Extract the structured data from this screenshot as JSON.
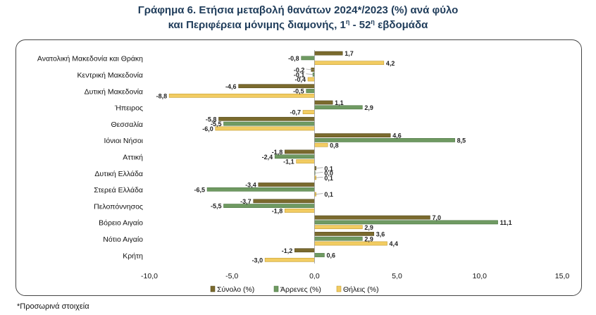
{
  "header": {
    "title_line1": "Γράφημα 6. Ετήσια μεταβολή θανάτων 2024*/2023 (%) ανά φύλο",
    "title_line2": "και Περιφέρεια μόνιμης διαμονής, 1η - 52η εβδομάδα"
  },
  "footnote": "*Προσωρινά στοιχεία",
  "chart_data": {
    "type": "bar",
    "orientation": "horizontal",
    "title": "Γράφημα 6. Ετήσια μεταβολή θανάτων 2024*/2023 (%) ανά φύλο και Περιφέρεια μόνιμης διαμονής, 1η - 52η εβδομάδα",
    "categories": [
      "Ανατολική Μακεδονία και Θράκη",
      "Κεντρική Μακεδονία",
      "Δυτική Μακεδονία",
      "Ήπειρος",
      "Θεσσαλία",
      "Ιόνιοι Νήσοι",
      "Αττική",
      "Δυτική Ελλάδα",
      "Στερεά Ελλάδα",
      "Πελοπόννησος",
      "Βόρειο Αιγαίο",
      "Νότιο Αιγαίο",
      "Κρήτη"
    ],
    "series": [
      {
        "name": "Σύνολο (%)",
        "color": "#7a6a2e",
        "border": "#4f4418",
        "values": [
          1.7,
          -0.2,
          -4.6,
          1.1,
          -5.8,
          4.6,
          -1.8,
          0.1,
          -3.4,
          -3.7,
          7.0,
          3.6,
          -1.2
        ]
      },
      {
        "name": "Άρρενες (%)",
        "color": "#6f9a62",
        "border": "#3f6b35",
        "values": [
          -0.8,
          -0.1,
          -0.5,
          2.9,
          -5.5,
          8.5,
          -2.4,
          0.0,
          -6.5,
          -5.5,
          11.1,
          2.9,
          0.6
        ]
      },
      {
        "name": "Θήλεις (%)",
        "color": "#f2cc62",
        "border": "#b8901c",
        "values": [
          4.2,
          -0.4,
          -8.8,
          -0.7,
          -6.0,
          0.8,
          -1.1,
          0.1,
          0.1,
          -1.8,
          2.9,
          4.4,
          -3.0
        ]
      }
    ],
    "xlim": [
      -10.0,
      15.0
    ],
    "xticks": [
      "-10,0",
      "-5,0",
      "0,0",
      "5,0",
      "10,0",
      "15,0"
    ],
    "grid": false,
    "legend_position": "bottom"
  }
}
